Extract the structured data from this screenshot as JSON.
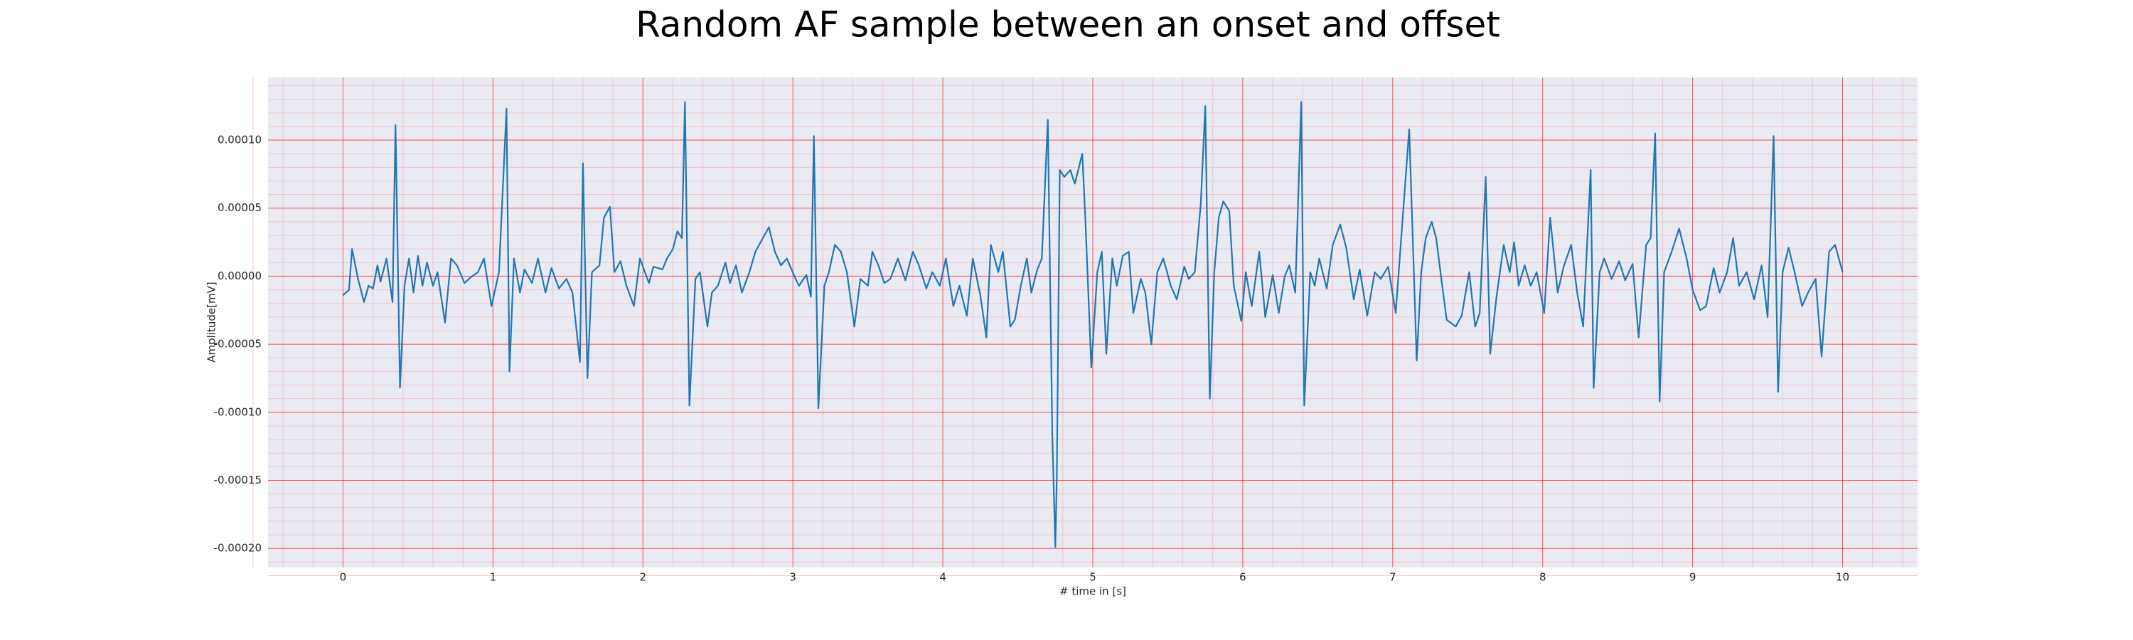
{
  "chart_data": {
    "type": "line",
    "title": "Random AF sample between an onset and offset",
    "xlabel": "# time in [s]",
    "ylabel": "Amplitude[mV]",
    "color": "#1f77b4",
    "grid": true,
    "grid_color": "#ff0000",
    "minor_grid": true,
    "minor_grid_color": "#f2b3bf",
    "background": "#eaeaf2",
    "xlim": [
      -0.5,
      10.5
    ],
    "ylim": [
      -0.000214,
      0.000146
    ],
    "xticks": [
      0,
      1,
      2,
      3,
      4,
      5,
      6,
      7,
      8,
      9,
      10
    ],
    "yticks": [
      {
        "value": -0.0002,
        "label": "-0.00020"
      },
      {
        "value": -0.00015,
        "label": "-0.00015"
      },
      {
        "value": -0.0001,
        "label": "-0.00010"
      },
      {
        "value": -5e-05,
        "label": "-0.00005"
      },
      {
        "value": 0,
        "label": "0.00000"
      },
      {
        "value": 5e-05,
        "label": "0.00005"
      },
      {
        "value": 0.0001,
        "label": "0.00010"
      }
    ],
    "x": [
      0,
      0.04,
      0.06,
      0.1,
      0.14,
      0.17,
      0.2,
      0.23,
      0.25,
      0.29,
      0.33,
      0.35,
      0.38,
      0.41,
      0.44,
      0.47,
      0.5,
      0.53,
      0.56,
      0.6,
      0.63,
      0.68,
      0.72,
      0.76,
      0.81,
      0.85,
      0.9,
      0.94,
      0.99,
      1.04,
      1.09,
      1.11,
      1.14,
      1.18,
      1.21,
      1.26,
      1.3,
      1.35,
      1.39,
      1.44,
      1.49,
      1.53,
      1.58,
      1.6,
      1.63,
      1.66,
      1.71,
      1.74,
      1.78,
      1.81,
      1.85,
      1.89,
      1.94,
      1.98,
      2.04,
      2.07,
      2.13,
      2.16,
      2.2,
      2.23,
      2.26,
      2.28,
      2.31,
      2.35,
      2.38,
      2.43,
      2.46,
      2.5,
      2.55,
      2.58,
      2.62,
      2.66,
      2.71,
      2.75,
      2.8,
      2.84,
      2.88,
      2.92,
      2.96,
      3.01,
      3.04,
      3.09,
      3.12,
      3.14,
      3.17,
      3.21,
      3.24,
      3.28,
      3.32,
      3.36,
      3.41,
      3.45,
      3.5,
      3.53,
      3.57,
      3.61,
      3.65,
      3.7,
      3.75,
      3.8,
      3.84,
      3.89,
      3.93,
      3.98,
      4.02,
      4.07,
      4.11,
      4.16,
      4.2,
      4.25,
      4.29,
      4.32,
      4.37,
      4.4,
      4.45,
      4.48,
      4.52,
      4.56,
      4.59,
      4.63,
      4.66,
      4.7,
      4.73,
      4.75,
      4.76,
      4.78,
      4.81,
      4.85,
      4.88,
      4.93,
      4.95,
      4.99,
      5.03,
      5.06,
      5.09,
      5.13,
      5.16,
      5.2,
      5.24,
      5.27,
      5.32,
      5.35,
      5.39,
      5.43,
      5.47,
      5.52,
      5.56,
      5.61,
      5.64,
      5.68,
      5.72,
      5.75,
      5.78,
      5.81,
      5.84,
      5.87,
      5.91,
      5.94,
      5.99,
      6.02,
      6.06,
      6.11,
      6.15,
      6.2,
      6.24,
      6.28,
      6.31,
      6.35,
      6.39,
      6.41,
      6.45,
      6.48,
      6.51,
      6.56,
      6.6,
      6.65,
      6.69,
      6.74,
      6.78,
      6.83,
      6.88,
      6.92,
      6.97,
      7.02,
      7.11,
      7.16,
      7.19,
      7.22,
      7.26,
      7.29,
      7.33,
      7.36,
      7.42,
      7.46,
      7.51,
      7.55,
      7.58,
      7.62,
      7.65,
      7.69,
      7.74,
      7.78,
      7.81,
      7.84,
      7.88,
      7.92,
      7.96,
      8.01,
      8.05,
      8.1,
      8.14,
      8.19,
      8.23,
      8.27,
      8.32,
      8.34,
      8.38,
      8.41,
      8.46,
      8.51,
      8.55,
      8.6,
      8.64,
      8.69,
      8.72,
      8.75,
      8.78,
      8.81,
      8.86,
      8.91,
      8.96,
      9.0,
      9.05,
      9.09,
      9.14,
      9.18,
      9.23,
      9.27,
      9.31,
      9.36,
      9.41,
      9.46,
      9.5,
      9.54,
      9.57,
      9.6,
      9.64,
      9.68,
      9.73,
      9.77,
      9.82,
      9.86,
      9.91,
      9.95,
      10.0
    ],
    "values": [
      -1.4e-05,
      -1e-05,
      2e-05,
      -2e-06,
      -1.9e-05,
      -7e-06,
      -9e-06,
      8e-06,
      -4e-06,
      1.3e-05,
      -1.9e-05,
      0.000111,
      -8.2e-05,
      -7e-06,
      1.3e-05,
      -1.2e-05,
      1.5e-05,
      -7e-06,
      1e-05,
      -7e-06,
      3e-06,
      -3.4e-05,
      1.3e-05,
      8e-06,
      -5e-06,
      -1e-06,
      3e-06,
      1.3e-05,
      -2.2e-05,
      3e-06,
      0.000123,
      -7e-05,
      1.3e-05,
      -1.2e-05,
      5e-06,
      -5e-06,
      1.3e-05,
      -1.2e-05,
      6e-06,
      -9e-06,
      -2e-06,
      -1.2e-05,
      -6.3e-05,
      8.3e-05,
      -7.5e-05,
      3e-06,
      8e-06,
      4.3e-05,
      5.1e-05,
      3e-06,
      1.1e-05,
      -7e-06,
      -2.2e-05,
      1.3e-05,
      -5e-06,
      7e-06,
      5e-06,
      1.3e-05,
      2e-05,
      3.3e-05,
      2.8e-05,
      0.000128,
      -9.5e-05,
      -2e-06,
      3e-06,
      -3.7e-05,
      -1.2e-05,
      -7e-06,
      1e-05,
      -5e-06,
      8e-06,
      -1.2e-05,
      3e-06,
      1.8e-05,
      2.8e-05,
      3.6e-05,
      1.8e-05,
      8e-06,
      1.3e-05,
      0,
      -7e-06,
      1e-06,
      -1.5e-05,
      0.000103,
      -9.7e-05,
      -7e-06,
      3e-06,
      2.3e-05,
      1.8e-05,
      3e-06,
      -3.7e-05,
      -2e-06,
      -7e-06,
      1.8e-05,
      8e-06,
      -5e-06,
      -2e-06,
      1.3e-05,
      -3e-06,
      1.8e-05,
      8e-06,
      -9e-06,
      3e-06,
      -7e-06,
      1.3e-05,
      -2.2e-05,
      -7e-06,
      -2.9e-05,
      1.3e-05,
      -1.4e-05,
      -4.5e-05,
      2.3e-05,
      3e-06,
      1.8e-05,
      -3.7e-05,
      -3.2e-05,
      -7e-06,
      1.3e-05,
      -1.2e-05,
      5e-06,
      1.3e-05,
      0.000115,
      -0.000117,
      -0.000199,
      -0.000147,
      7.8e-05,
      7.3e-05,
      7.8e-05,
      6.8e-05,
      9e-05,
      4.3e-05,
      -6.7e-05,
      3e-06,
      1.8e-05,
      -5.7e-05,
      1.3e-05,
      -7e-06,
      1.5e-05,
      1.8e-05,
      -2.7e-05,
      -2e-06,
      -1.2e-05,
      -5e-05,
      3e-06,
      1.3e-05,
      -7e-06,
      -1.7e-05,
      7e-06,
      -2e-06,
      3e-06,
      5.3e-05,
      0.000125,
      -9e-05,
      3e-06,
      4.3e-05,
      5.5e-05,
      4.8e-05,
      -7e-06,
      -3.3e-05,
      3e-06,
      -2.2e-05,
      1.8e-05,
      -3e-05,
      1e-06,
      -2.7e-05,
      0,
      8e-06,
      -1.2e-05,
      0.000128,
      -9.5e-05,
      3e-06,
      -7e-06,
      1.3e-05,
      -9e-06,
      2.3e-05,
      3.8e-05,
      2.1e-05,
      -1.7e-05,
      5e-06,
      -2.9e-05,
      3e-06,
      -2e-06,
      7e-06,
      -2.7e-05,
      0.000108,
      -6.2e-05,
      3e-06,
      2.8e-05,
      4e-05,
      2.8e-05,
      -7e-06,
      -3.2e-05,
      -3.7e-05,
      -2.9e-05,
      3e-06,
      -3.7e-05,
      -2.7e-05,
      7.3e-05,
      -5.7e-05,
      -1.7e-05,
      2.3e-05,
      3e-06,
      2.5e-05,
      -7e-06,
      8e-06,
      -7e-06,
      3e-06,
      -2.7e-05,
      4.3e-05,
      -1.2e-05,
      7e-06,
      2.3e-05,
      -1.2e-05,
      -3.7e-05,
      7.8e-05,
      -8.2e-05,
      3e-06,
      1.3e-05,
      -2e-06,
      1.1e-05,
      -3e-06,
      9e-06,
      -4.5e-05,
      2.3e-05,
      2.8e-05,
      0.000105,
      -9.2e-05,
      3e-06,
      1.8e-05,
      3.5e-05,
      1.3e-05,
      -1e-05,
      -2.5e-05,
      -2.2e-05,
      6e-06,
      -1.2e-05,
      3e-06,
      2.8e-05,
      -7e-06,
      3e-06,
      -1.7e-05,
      8e-06,
      -3e-05,
      0.000103,
      -8.5e-05,
      3e-06,
      2.1e-05,
      3e-06,
      -2.2e-05,
      -1.2e-05,
      -2e-06,
      -5.9e-05,
      1.8e-05,
      2.3e-05,
      3e-06
    ]
  }
}
